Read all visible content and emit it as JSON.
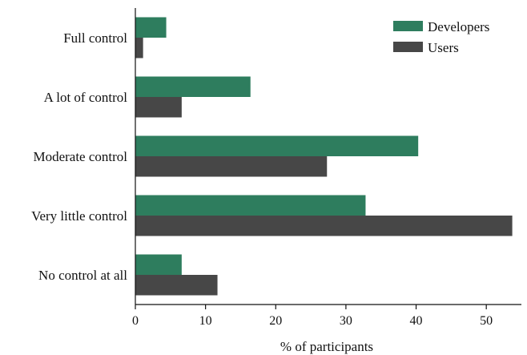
{
  "chart_data": {
    "type": "bar",
    "orientation": "horizontal",
    "title": "",
    "xlabel": "% of participants",
    "ylabel": "",
    "categories": [
      "Full control",
      "A lot of control",
      "Moderate control",
      "Very little control",
      "No control at all"
    ],
    "series": [
      {
        "name": "Developers",
        "color": "#2e7d5e",
        "values": [
          4.4,
          16.4,
          40.3,
          32.8,
          6.6
        ]
      },
      {
        "name": "Users",
        "color": "#474747",
        "values": [
          1.1,
          6.6,
          27.3,
          53.7,
          11.7
        ]
      }
    ],
    "xlim": [
      0,
      55
    ],
    "xticks": [
      0,
      10,
      20,
      30,
      40,
      50
    ],
    "grid": false,
    "legend_position": "top-right"
  }
}
